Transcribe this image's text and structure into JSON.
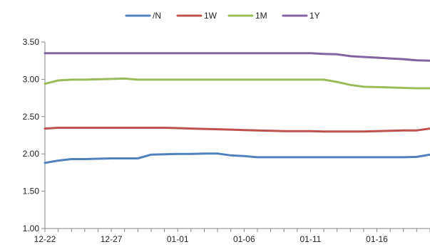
{
  "chart_data": {
    "type": "line",
    "x": [
      "12-22",
      "12-23",
      "12-24",
      "12-25",
      "12-26",
      "12-27",
      "12-28",
      "12-29",
      "12-30",
      "12-31",
      "01-01",
      "01-02",
      "01-03",
      "01-04",
      "01-05",
      "01-06",
      "01-07",
      "01-08",
      "01-09",
      "01-10",
      "01-11",
      "01-12",
      "01-13",
      "01-14",
      "01-15",
      "01-16",
      "01-17",
      "01-18",
      "01-19",
      "01-20"
    ],
    "x_tick_labels": [
      "12-22",
      "12-27",
      "01-01",
      "01-06",
      "01-11",
      "01-16"
    ],
    "y_tick_labels": [
      "1.00",
      "1.50",
      "2.00",
      "2.50",
      "3.00",
      "3.50"
    ],
    "ylim": [
      1.0,
      3.5
    ],
    "grid": "none",
    "legend_position": "top",
    "series": [
      {
        "name": "/N",
        "color": "#4f81bd",
        "values": [
          1.88,
          1.91,
          1.93,
          1.93,
          1.935,
          1.94,
          1.94,
          1.94,
          1.99,
          1.995,
          2.0,
          2.0,
          2.005,
          2.005,
          1.98,
          1.97,
          1.955,
          1.955,
          1.955,
          1.955,
          1.955,
          1.955,
          1.955,
          1.955,
          1.955,
          1.955,
          1.955,
          1.955,
          1.96,
          1.99
        ]
      },
      {
        "name": "1W",
        "color": "#c0504d",
        "values": [
          2.34,
          2.35,
          2.35,
          2.35,
          2.35,
          2.35,
          2.35,
          2.35,
          2.35,
          2.35,
          2.345,
          2.34,
          2.335,
          2.33,
          2.325,
          2.32,
          2.315,
          2.31,
          2.305,
          2.305,
          2.305,
          2.3,
          2.3,
          2.3,
          2.3,
          2.305,
          2.31,
          2.315,
          2.315,
          2.34
        ]
      },
      {
        "name": "1M",
        "color": "#9bbb59",
        "values": [
          2.94,
          2.985,
          2.995,
          2.995,
          3.0,
          3.005,
          3.01,
          2.995,
          2.995,
          2.995,
          2.995,
          2.995,
          2.995,
          2.995,
          2.995,
          2.995,
          2.995,
          2.995,
          2.995,
          2.995,
          2.995,
          2.995,
          2.965,
          2.925,
          2.9,
          2.895,
          2.89,
          2.885,
          2.88,
          2.88
        ]
      },
      {
        "name": "1Y",
        "color": "#8064a2",
        "values": [
          3.35,
          3.35,
          3.35,
          3.35,
          3.35,
          3.35,
          3.35,
          3.35,
          3.35,
          3.35,
          3.35,
          3.35,
          3.35,
          3.35,
          3.35,
          3.35,
          3.35,
          3.35,
          3.35,
          3.35,
          3.35,
          3.34,
          3.335,
          3.31,
          3.3,
          3.29,
          3.28,
          3.27,
          3.255,
          3.25
        ]
      }
    ]
  }
}
